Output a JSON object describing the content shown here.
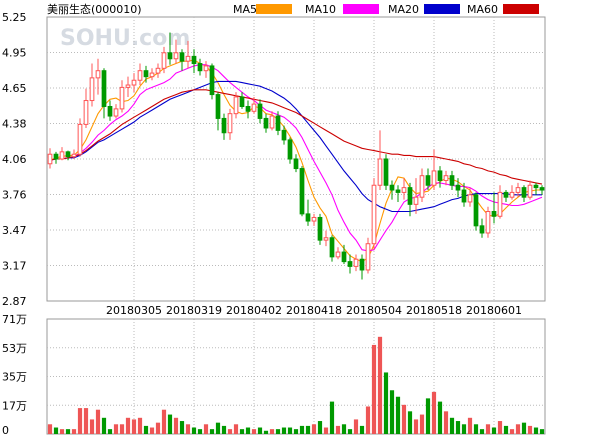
{
  "chart_data": {
    "type": "candlestick",
    "title": "美丽生态(000010)",
    "watermark": "SOHU.com",
    "legend": [
      {
        "name": "MA5",
        "color": "#ff9900"
      },
      {
        "name": "MA10",
        "color": "#ff00ff"
      },
      {
        "name": "MA20",
        "color": "#0000cc"
      },
      {
        "name": "MA60",
        "color": "#cc0000"
      }
    ],
    "price_axis": {
      "ticks": [
        "5.25",
        "4.95",
        "4.65",
        "4.38",
        "4.06",
        "3.76",
        "3.47",
        "3.17",
        "2.87"
      ],
      "ylim": [
        2.87,
        5.25
      ]
    },
    "date_ticks": [
      {
        "label": "20180305",
        "index": 14
      },
      {
        "label": "20180319",
        "index": 24
      },
      {
        "label": "20180402",
        "index": 34
      },
      {
        "label": "20180418",
        "index": 44
      },
      {
        "label": "20180504",
        "index": 54
      },
      {
        "label": "20180518",
        "index": 64
      },
      {
        "label": "20180601",
        "index": 74
      }
    ],
    "volume_axis": {
      "ticks": [
        "71万",
        "53万",
        "35万",
        "17万",
        "0"
      ],
      "ylim": [
        0,
        71
      ]
    },
    "colors": {
      "up": "#ff5555",
      "down": "#009900",
      "grid": "#999999",
      "vol_up": "#ee5555",
      "vol_down": "#009900"
    },
    "candles": [
      [
        4.02,
        4.1,
        4.15,
        3.98
      ],
      [
        4.1,
        4.06,
        4.12,
        4.02
      ],
      [
        4.06,
        4.12,
        4.16,
        4.05
      ],
      [
        4.12,
        4.08,
        4.13,
        4.05
      ],
      [
        4.08,
        4.1,
        4.14,
        4.06
      ],
      [
        4.1,
        4.35,
        4.4,
        4.08
      ],
      [
        4.35,
        4.55,
        4.65,
        4.32
      ],
      [
        4.55,
        4.74,
        4.86,
        4.5
      ],
      [
        4.74,
        4.8,
        4.9,
        4.6
      ],
      [
        4.8,
        4.5,
        4.82,
        4.4
      ],
      [
        4.5,
        4.42,
        4.55,
        4.38
      ],
      [
        4.42,
        4.48,
        4.52,
        4.4
      ],
      [
        4.48,
        4.66,
        4.72,
        4.45
      ],
      [
        4.66,
        4.68,
        4.75,
        4.58
      ],
      [
        4.68,
        4.72,
        4.78,
        4.62
      ],
      [
        4.72,
        4.8,
        4.86,
        4.68
      ],
      [
        4.8,
        4.75,
        4.84,
        4.7
      ],
      [
        4.75,
        4.78,
        4.82,
        4.72
      ],
      [
        4.78,
        4.82,
        4.86,
        4.74
      ],
      [
        4.82,
        4.95,
        5.0,
        4.78
      ],
      [
        4.95,
        4.9,
        5.12,
        4.85
      ],
      [
        4.9,
        4.95,
        5.06,
        4.86
      ],
      [
        4.95,
        4.88,
        4.98,
        4.8
      ],
      [
        4.88,
        4.92,
        5.05,
        4.82
      ],
      [
        4.92,
        4.86,
        4.98,
        4.78
      ],
      [
        4.86,
        4.8,
        4.9,
        4.76
      ],
      [
        4.8,
        4.84,
        4.88,
        4.74
      ],
      [
        4.84,
        4.6,
        4.86,
        4.56
      ],
      [
        4.6,
        4.4,
        4.62,
        4.3
      ],
      [
        4.4,
        4.28,
        4.44,
        4.22
      ],
      [
        4.28,
        4.44,
        4.48,
        4.22
      ],
      [
        4.44,
        4.58,
        4.62,
        4.4
      ],
      [
        4.58,
        4.5,
        4.62,
        4.48
      ],
      [
        4.5,
        4.46,
        4.55,
        4.4
      ],
      [
        4.46,
        4.52,
        4.58,
        4.44
      ],
      [
        4.52,
        4.4,
        4.56,
        4.36
      ],
      [
        4.4,
        4.32,
        4.44,
        4.28
      ],
      [
        4.32,
        4.42,
        4.46,
        4.3
      ],
      [
        4.42,
        4.3,
        4.46,
        4.26
      ],
      [
        4.3,
        4.22,
        4.34,
        4.18
      ],
      [
        4.22,
        4.06,
        4.24,
        4.02
      ],
      [
        4.06,
        3.98,
        4.1,
        3.95
      ],
      [
        3.98,
        3.6,
        4.0,
        3.58
      ],
      [
        3.6,
        3.54,
        3.72,
        3.5
      ],
      [
        3.54,
        3.57,
        3.6,
        3.5
      ],
      [
        3.57,
        3.38,
        3.6,
        3.34
      ],
      [
        3.38,
        3.4,
        3.46,
        3.33
      ],
      [
        3.4,
        3.24,
        3.42,
        3.2
      ],
      [
        3.24,
        3.28,
        3.32,
        3.22
      ],
      [
        3.28,
        3.2,
        3.34,
        3.18
      ],
      [
        3.2,
        3.16,
        3.26,
        3.1
      ],
      [
        3.16,
        3.22,
        3.26,
        3.12
      ],
      [
        3.22,
        3.13,
        3.26,
        3.05
      ],
      [
        3.13,
        3.35,
        3.4,
        3.1
      ],
      [
        3.35,
        3.84,
        3.9,
        3.3
      ],
      [
        3.84,
        4.06,
        4.3,
        3.8
      ],
      [
        4.06,
        3.84,
        4.1,
        3.8
      ],
      [
        3.84,
        3.8,
        3.88,
        3.72
      ],
      [
        3.8,
        3.78,
        3.84,
        3.7
      ],
      [
        3.78,
        3.82,
        3.9,
        3.72
      ],
      [
        3.82,
        3.68,
        3.86,
        3.58
      ],
      [
        3.68,
        3.74,
        3.9,
        3.6
      ],
      [
        3.74,
        3.92,
        3.98,
        3.7
      ],
      [
        3.92,
        3.84,
        3.98,
        3.8
      ],
      [
        3.84,
        3.96,
        4.14,
        3.8
      ],
      [
        3.96,
        3.88,
        4.0,
        3.82
      ],
      [
        3.88,
        3.92,
        3.96,
        3.84
      ],
      [
        3.92,
        3.84,
        3.96,
        3.8
      ],
      [
        3.84,
        3.8,
        3.9,
        3.74
      ],
      [
        3.8,
        3.7,
        3.86,
        3.66
      ],
      [
        3.7,
        3.76,
        3.82,
        3.66
      ],
      [
        3.76,
        3.5,
        3.78,
        3.46
      ],
      [
        3.5,
        3.44,
        3.56,
        3.4
      ],
      [
        3.44,
        3.62,
        3.66,
        3.4
      ],
      [
        3.62,
        3.58,
        3.78,
        3.52
      ],
      [
        3.58,
        3.78,
        3.84,
        3.56
      ],
      [
        3.78,
        3.74,
        3.8,
        3.7
      ],
      [
        3.74,
        3.78,
        3.84,
        3.72
      ],
      [
        3.78,
        3.82,
        3.86,
        3.74
      ],
      [
        3.82,
        3.74,
        3.84,
        3.7
      ],
      [
        3.74,
        3.84,
        3.88,
        3.72
      ],
      [
        3.84,
        3.82,
        3.86,
        3.76
      ],
      [
        3.82,
        3.8,
        3.84,
        3.76
      ]
    ],
    "ma": {
      "MA5": [
        4.05,
        4.07,
        4.08,
        4.09,
        4.09,
        4.14,
        4.22,
        4.33,
        4.44,
        4.51,
        4.56,
        4.57,
        4.54,
        4.55,
        4.59,
        4.67,
        4.73,
        4.75,
        4.78,
        4.82,
        4.84,
        4.86,
        4.88,
        4.88,
        4.89,
        4.86,
        4.84,
        4.78,
        4.7,
        4.6,
        4.51,
        4.46,
        4.44,
        4.45,
        4.5,
        4.49,
        4.44,
        4.43,
        4.39,
        4.33,
        4.25,
        4.16,
        4.03,
        3.88,
        3.74,
        3.65,
        3.58,
        3.43,
        3.37,
        3.31,
        3.25,
        3.22,
        3.2,
        3.23,
        3.34,
        3.52,
        3.69,
        3.81,
        3.91,
        3.9,
        3.82,
        3.77,
        3.78,
        3.79,
        3.84,
        3.87,
        3.9,
        3.89,
        3.87,
        3.83,
        3.8,
        3.72,
        3.65,
        3.59,
        3.58,
        3.6,
        3.65,
        3.7,
        3.74,
        3.78,
        3.79,
        3.8,
        3.8
      ],
      "MA10": [
        4.05,
        4.06,
        4.06,
        4.07,
        4.08,
        4.11,
        4.15,
        4.2,
        4.26,
        4.3,
        4.35,
        4.39,
        4.42,
        4.46,
        4.52,
        4.6,
        4.64,
        4.66,
        4.68,
        4.7,
        4.73,
        4.78,
        4.8,
        4.82,
        4.84,
        4.85,
        4.85,
        4.83,
        4.8,
        4.75,
        4.7,
        4.66,
        4.62,
        4.58,
        4.55,
        4.51,
        4.47,
        4.45,
        4.43,
        4.41,
        4.37,
        4.32,
        4.24,
        4.14,
        4.04,
        3.95,
        3.86,
        3.76,
        3.63,
        3.53,
        3.44,
        3.38,
        3.3,
        3.29,
        3.3,
        3.38,
        3.46,
        3.53,
        3.62,
        3.7,
        3.73,
        3.74,
        3.78,
        3.82,
        3.86,
        3.86,
        3.85,
        3.84,
        3.83,
        3.83,
        3.82,
        3.79,
        3.75,
        3.72,
        3.7,
        3.69,
        3.68,
        3.67,
        3.67,
        3.68,
        3.7,
        3.72,
        3.74
      ],
      "MA20": [
        4.05,
        4.06,
        4.06,
        4.07,
        4.07,
        4.09,
        4.12,
        4.16,
        4.2,
        4.22,
        4.25,
        4.28,
        4.31,
        4.34,
        4.37,
        4.41,
        4.44,
        4.47,
        4.5,
        4.53,
        4.56,
        4.58,
        4.6,
        4.62,
        4.64,
        4.66,
        4.68,
        4.7,
        4.71,
        4.71,
        4.71,
        4.71,
        4.7,
        4.69,
        4.68,
        4.67,
        4.65,
        4.63,
        4.6,
        4.57,
        4.53,
        4.48,
        4.42,
        4.36,
        4.3,
        4.24,
        4.17,
        4.1,
        4.03,
        3.96,
        3.9,
        3.84,
        3.77,
        3.72,
        3.69,
        3.66,
        3.64,
        3.62,
        3.62,
        3.62,
        3.62,
        3.63,
        3.64,
        3.65,
        3.66,
        3.68,
        3.7,
        3.72,
        3.73,
        3.75,
        3.76,
        3.77,
        3.77,
        3.77,
        3.77,
        3.77,
        3.77,
        3.76,
        3.76,
        3.76,
        3.76,
        3.76,
        3.76
      ],
      "MA60": [
        4.05,
        4.06,
        4.06,
        4.07,
        4.08,
        4.1,
        4.13,
        4.17,
        4.21,
        4.24,
        4.27,
        4.31,
        4.35,
        4.38,
        4.41,
        4.44,
        4.47,
        4.5,
        4.53,
        4.56,
        4.58,
        4.6,
        4.62,
        4.63,
        4.64,
        4.64,
        4.64,
        4.63,
        4.62,
        4.61,
        4.6,
        4.59,
        4.58,
        4.57,
        4.56,
        4.55,
        4.54,
        4.53,
        4.51,
        4.49,
        4.47,
        4.45,
        4.42,
        4.39,
        4.36,
        4.33,
        4.3,
        4.27,
        4.24,
        4.21,
        4.19,
        4.17,
        4.15,
        4.14,
        4.13,
        4.12,
        4.11,
        4.1,
        4.1,
        4.09,
        4.09,
        4.08,
        4.08,
        4.08,
        4.08,
        4.07,
        4.06,
        4.05,
        4.04,
        4.02,
        4.01,
        3.99,
        3.98,
        3.96,
        3.95,
        3.93,
        3.92,
        3.9,
        3.89,
        3.88,
        3.87,
        3.86,
        3.85
      ]
    },
    "volume": [
      6,
      4,
      3,
      3,
      3,
      16,
      16,
      9,
      15,
      10,
      3,
      6,
      6,
      10,
      9,
      10,
      5,
      4,
      7,
      15,
      12,
      10,
      8,
      6,
      4,
      3,
      6,
      3,
      7,
      5,
      3,
      6,
      3,
      4,
      3,
      4,
      2,
      3,
      3,
      4,
      4,
      3,
      5,
      5,
      6,
      8,
      4,
      20,
      5,
      6,
      3,
      9,
      5,
      17,
      55,
      60,
      38,
      27,
      23,
      18,
      14,
      9,
      12,
      22,
      26,
      20,
      14,
      10,
      8,
      6,
      10,
      6,
      3,
      6,
      4,
      8,
      5,
      3,
      6,
      7,
      5,
      4,
      3
    ]
  }
}
